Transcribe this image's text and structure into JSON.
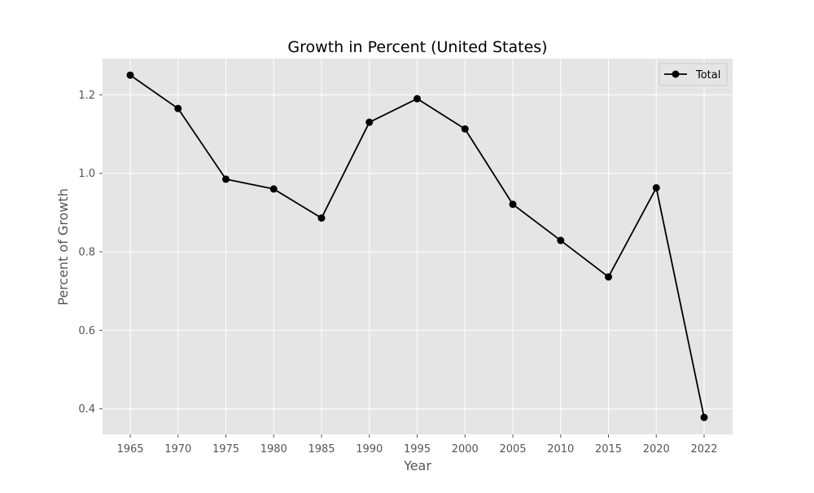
{
  "chart_data": {
    "type": "line",
    "title": "Growth in Percent (United States)",
    "xlabel": "Year",
    "ylabel": "Percent of Growth",
    "categories": [
      "1965",
      "1970",
      "1975",
      "1980",
      "1985",
      "1990",
      "1995",
      "2000",
      "2005",
      "2010",
      "2015",
      "2020",
      "2022"
    ],
    "series": [
      {
        "name": "Total",
        "values": [
          1.25,
          1.165,
          0.985,
          0.96,
          0.886,
          1.13,
          1.19,
          1.113,
          0.921,
          0.829,
          0.736,
          0.963,
          0.378
        ],
        "color": "#000000",
        "marker": "circle"
      }
    ],
    "ylim": [
      0.335,
      1.292
    ],
    "yticks": [
      "0.4",
      "0.6",
      "0.8",
      "1.0",
      "1.2"
    ],
    "grid": true,
    "legend_position": "top-right",
    "plot_background": "#e5e5e5",
    "grid_color": "#ffffff"
  }
}
